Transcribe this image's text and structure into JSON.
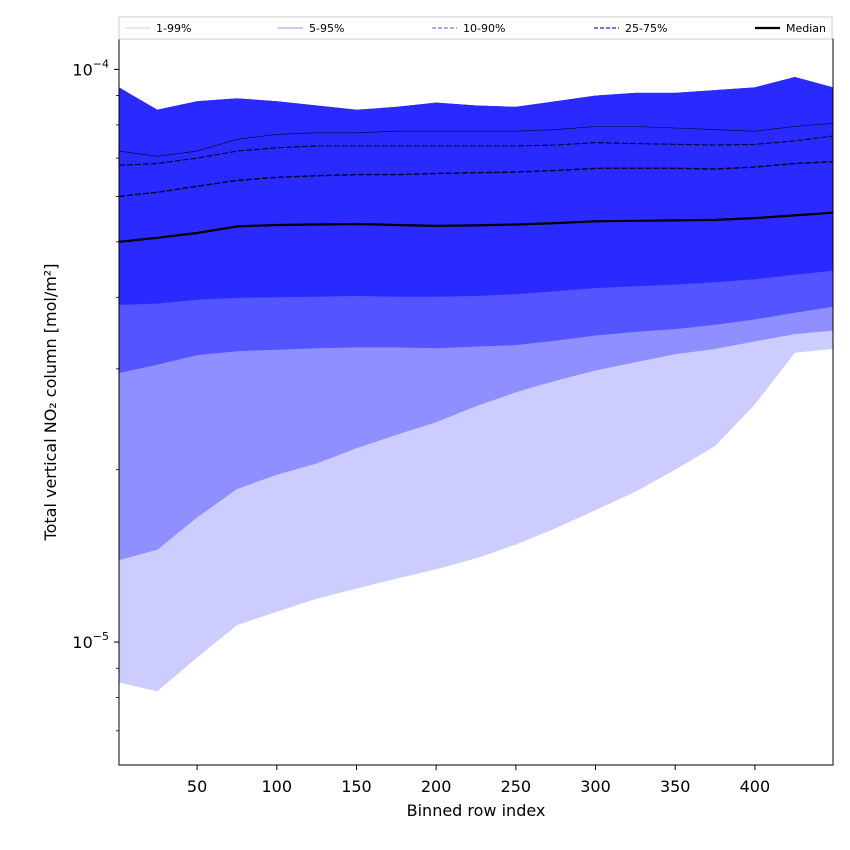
{
  "chart_data": {
    "type": "area",
    "xlabel": "Binned row index",
    "ylabel": "Total vertical NO₂ column [mol/m²]",
    "xlim": [
      1,
      449
    ],
    "ylim": [
      6.1e-06,
      0.000113
    ],
    "y_scale": "log",
    "x_ticks": [
      50,
      100,
      150,
      200,
      250,
      300,
      350,
      400
    ],
    "y_major_ticks": [
      {
        "value": 1e-05,
        "base": "10",
        "exp": "−5"
      },
      {
        "value": 0.0001,
        "base": "10",
        "exp": "−4"
      }
    ],
    "legend": {
      "placement": "top",
      "entries": [
        {
          "label": "1-99%",
          "color": "#dcdcf8",
          "style": "solid"
        },
        {
          "label": "5-95%",
          "color": "#aaaaee",
          "style": "solid"
        },
        {
          "label": "10-90%",
          "color": "#7777ff",
          "style": "dashed"
        },
        {
          "label": "25-75%",
          "color": "#2222aa",
          "style": "dashed"
        },
        {
          "label": "Median",
          "color": "#000000",
          "style": "solid"
        }
      ]
    },
    "x": [
      1,
      25,
      50,
      75,
      100,
      125,
      150,
      175,
      200,
      225,
      250,
      275,
      300,
      325,
      350,
      375,
      400,
      425,
      449
    ],
    "bands": [
      {
        "name": "1-99%",
        "fill": "#ccccff",
        "lower": [
          8.5e-06,
          8.2e-06,
          9.4e-06,
          1.07e-05,
          1.13e-05,
          1.19e-05,
          1.24e-05,
          1.29e-05,
          1.34e-05,
          1.4e-05,
          1.48e-05,
          1.58e-05,
          1.7e-05,
          1.83e-05,
          2e-05,
          2.2e-05,
          2.6e-05,
          3.2e-05,
          3.25e-05
        ],
        "upper": [
          9.3e-05,
          8.5e-05,
          8.8e-05,
          8.9e-05,
          8.8e-05,
          8.65e-05,
          8.5e-05,
          8.6e-05,
          8.75e-05,
          8.65e-05,
          8.6e-05,
          8.8e-05,
          9e-05,
          9.1e-05,
          9.1e-05,
          9.2e-05,
          9.3e-05,
          9.7e-05,
          9.3e-05
        ]
      },
      {
        "name": "5-95%",
        "fill": "#8f8fff",
        "lower": [
          1.39e-05,
          1.45e-05,
          1.65e-05,
          1.85e-05,
          1.96e-05,
          2.05e-05,
          2.18e-05,
          2.3e-05,
          2.42e-05,
          2.58e-05,
          2.73e-05,
          2.86e-05,
          2.98e-05,
          3.08e-05,
          3.18e-05,
          3.25e-05,
          3.35e-05,
          3.45e-05,
          3.5e-05
        ]
      },
      {
        "name": "10-90%",
        "fill": "#5555ff",
        "lower": [
          2.95e-05,
          3.05e-05,
          3.17e-05,
          3.22e-05,
          3.24e-05,
          3.26e-05,
          3.27e-05,
          3.27e-05,
          3.26e-05,
          3.28e-05,
          3.3e-05,
          3.36e-05,
          3.43e-05,
          3.48e-05,
          3.52e-05,
          3.58e-05,
          3.66e-05,
          3.76e-05,
          3.85e-05
        ]
      },
      {
        "name": "25-75%",
        "fill": "#2a2aff",
        "lower": [
          3.88e-05,
          3.9e-05,
          3.96e-05,
          3.99e-05,
          4e-05,
          4.01e-05,
          4.02e-05,
          4.01e-05,
          4.01e-05,
          4.02e-05,
          4.05e-05,
          4.1e-05,
          4.15e-05,
          4.18e-05,
          4.21e-05,
          4.25e-05,
          4.3e-05,
          4.38e-05,
          4.45e-05
        ]
      }
    ],
    "lines": [
      {
        "name": "5-95% upper",
        "color": "#000033",
        "width": 0.6,
        "dash": "",
        "values": [
          7.2e-05,
          7.05e-05,
          7.2e-05,
          7.55e-05,
          7.7e-05,
          7.75e-05,
          7.75e-05,
          7.8e-05,
          7.8e-05,
          7.8e-05,
          7.8e-05,
          7.85e-05,
          7.95e-05,
          7.95e-05,
          7.9e-05,
          7.85e-05,
          7.8e-05,
          7.95e-05,
          8.05e-05
        ]
      },
      {
        "name": "10-90% upper",
        "color": "#000033",
        "width": 1.1,
        "dash": "6,2",
        "values": [
          6.8e-05,
          6.85e-05,
          7e-05,
          7.2e-05,
          7.3e-05,
          7.35e-05,
          7.35e-05,
          7.35e-05,
          7.35e-05,
          7.35e-05,
          7.35e-05,
          7.38e-05,
          7.45e-05,
          7.42e-05,
          7.4e-05,
          7.38e-05,
          7.4e-05,
          7.5e-05,
          7.65e-05
        ]
      },
      {
        "name": "25-75% upper",
        "color": "#000033",
        "width": 1.4,
        "dash": "6,2",
        "values": [
          6e-05,
          6.1e-05,
          6.25e-05,
          6.4e-05,
          6.48e-05,
          6.52e-05,
          6.55e-05,
          6.55e-05,
          6.58e-05,
          6.6e-05,
          6.62e-05,
          6.66e-05,
          6.72e-05,
          6.72e-05,
          6.72e-05,
          6.7e-05,
          6.75e-05,
          6.85e-05,
          6.9e-05
        ]
      },
      {
        "name": "Median",
        "color": "#000000",
        "width": 2.2,
        "dash": "",
        "values": [
          5e-05,
          5.08e-05,
          5.18e-05,
          5.32e-05,
          5.35e-05,
          5.36e-05,
          5.37e-05,
          5.35e-05,
          5.33e-05,
          5.34e-05,
          5.36e-05,
          5.39e-05,
          5.43e-05,
          5.44e-05,
          5.45e-05,
          5.46e-05,
          5.5e-05,
          5.56e-05,
          5.62e-05
        ]
      }
    ]
  }
}
